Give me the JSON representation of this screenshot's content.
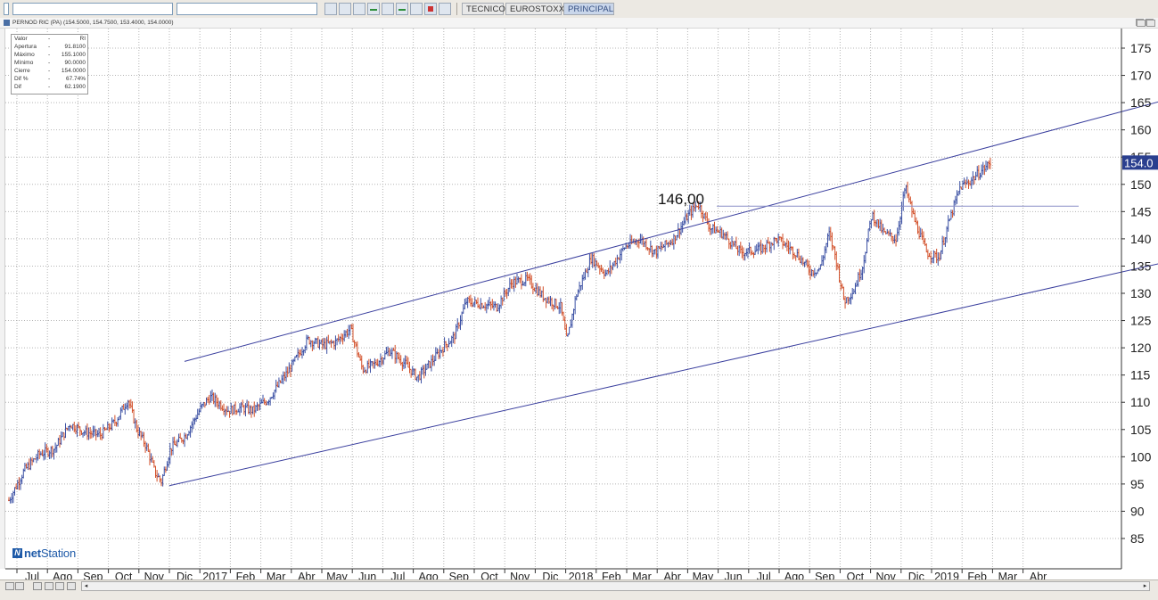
{
  "toolbar": {
    "tabs": [
      {
        "label": "TECNICO",
        "active": false
      },
      {
        "label": "EUROSTOXX",
        "active": false
      },
      {
        "label": "PRINCIPAL",
        "active": true
      }
    ]
  },
  "chart_window": {
    "title": "PERNOD RIC",
    "title_detail": "(PA) (154.5000, 154.7500, 153.4000, 154.0000)"
  },
  "info_panel": {
    "header": {
      "label": "Valor",
      "value": "RI"
    },
    "rows": [
      {
        "label": "Apertura",
        "value": "91.8100"
      },
      {
        "label": "Máximo",
        "value": "155.1000"
      },
      {
        "label": "Mínimo",
        "value": "90.0000"
      },
      {
        "label": "Cierre",
        "value": "154.0000"
      },
      {
        "label": "Dif %",
        "value": "67.74%"
      },
      {
        "label": "Dif",
        "value": "62.1900"
      }
    ]
  },
  "logo": {
    "prefix": "net",
    "suffix": "Station"
  },
  "chart_data": {
    "type": "candlestick",
    "title": "",
    "y_range": [
      82,
      178
    ],
    "y_ticks": [
      "85",
      "90",
      "95",
      "100",
      "105",
      "110",
      "115",
      "120",
      "125",
      "130",
      "135",
      "140",
      "145",
      "150",
      "155",
      "160",
      "165",
      "170",
      "175"
    ],
    "x_labels": [
      "Jul",
      "Ago",
      "Sep",
      "Oct",
      "Nov",
      "Dic",
      "2017",
      "Feb",
      "Mar",
      "Abr",
      "May",
      "Jun",
      "Jul",
      "Ago",
      "Sep",
      "Oct",
      "Nov",
      "Dic",
      "2018",
      "Feb",
      "Mar",
      "Abr",
      "May",
      "Jun",
      "Jul",
      "Ago",
      "Sep",
      "Oct",
      "Nov",
      "Dic",
      "2019",
      "Feb",
      "Mar",
      "Abr"
    ],
    "grid": true,
    "last_price_label": "154.0",
    "last_price": 154.0,
    "annotation": {
      "text": "146,00",
      "value": 146.0
    },
    "channel": {
      "upper": [
        {
          "month": 5,
          "value": 117.5
        },
        {
          "month": 40.2,
          "value": 170.0
        }
      ],
      "lower": [
        {
          "month": 4.5,
          "value": 94.7
        },
        {
          "month": 37.8,
          "value": 136.5
        }
      ]
    },
    "series_close_monthly": [
      {
        "month": 0.0,
        "value": 92.0
      },
      {
        "month": 0.5,
        "value": 97.5
      },
      {
        "month": 1.0,
        "value": 100.5
      },
      {
        "month": 1.5,
        "value": 101.5
      },
      {
        "month": 2.0,
        "value": 106.0
      },
      {
        "month": 2.5,
        "value": 104.5
      },
      {
        "month": 3.0,
        "value": 104.0
      },
      {
        "month": 3.5,
        "value": 106.5
      },
      {
        "month": 3.9,
        "value": 110.5
      },
      {
        "month": 4.2,
        "value": 105.0
      },
      {
        "month": 4.5,
        "value": 102.0
      },
      {
        "month": 4.8,
        "value": 97.0
      },
      {
        "month": 5.0,
        "value": 95.5
      },
      {
        "month": 5.3,
        "value": 101.5
      },
      {
        "month": 5.8,
        "value": 104.0
      },
      {
        "month": 6.3,
        "value": 109.0
      },
      {
        "month": 6.6,
        "value": 111.0
      },
      {
        "month": 7.2,
        "value": 108.5
      },
      {
        "month": 7.6,
        "value": 109.0
      },
      {
        "month": 8.0,
        "value": 108.5
      },
      {
        "month": 8.5,
        "value": 110.5
      },
      {
        "month": 9.2,
        "value": 116.0
      },
      {
        "month": 9.8,
        "value": 121.5
      },
      {
        "month": 10.3,
        "value": 120.5
      },
      {
        "month": 10.7,
        "value": 121.0
      },
      {
        "month": 11.2,
        "value": 123.5
      },
      {
        "month": 11.6,
        "value": 116.0
      },
      {
        "month": 12.0,
        "value": 117.0
      },
      {
        "month": 12.5,
        "value": 119.5
      },
      {
        "month": 13.0,
        "value": 117.0
      },
      {
        "month": 13.4,
        "value": 114.5
      },
      {
        "month": 13.8,
        "value": 117.0
      },
      {
        "month": 14.3,
        "value": 120.5
      },
      {
        "month": 14.6,
        "value": 122.0
      },
      {
        "month": 15.0,
        "value": 128.5
      },
      {
        "month": 15.5,
        "value": 128.0
      },
      {
        "month": 16.0,
        "value": 127.5
      },
      {
        "month": 16.5,
        "value": 132.0
      },
      {
        "month": 17.0,
        "value": 132.5
      },
      {
        "month": 17.5,
        "value": 129.5
      },
      {
        "month": 18.1,
        "value": 127.5
      },
      {
        "month": 18.3,
        "value": 121.0
      },
      {
        "month": 18.6,
        "value": 129.5
      },
      {
        "month": 19.1,
        "value": 136.5
      },
      {
        "month": 19.6,
        "value": 133.5
      },
      {
        "month": 20.2,
        "value": 138.5
      },
      {
        "month": 20.7,
        "value": 140.0
      },
      {
        "month": 21.2,
        "value": 137.5
      },
      {
        "month": 21.8,
        "value": 140.0
      },
      {
        "month": 22.3,
        "value": 144.5
      },
      {
        "month": 22.6,
        "value": 146.5
      },
      {
        "month": 23.0,
        "value": 142.0
      },
      {
        "month": 23.4,
        "value": 141.0
      },
      {
        "month": 24.0,
        "value": 137.5
      },
      {
        "month": 24.6,
        "value": 138.0
      },
      {
        "month": 25.2,
        "value": 140.0
      },
      {
        "month": 25.8,
        "value": 137.5
      },
      {
        "month": 26.3,
        "value": 134.0
      },
      {
        "month": 26.6,
        "value": 134.5
      },
      {
        "month": 26.9,
        "value": 141.0
      },
      {
        "month": 27.1,
        "value": 137.0
      },
      {
        "month": 27.4,
        "value": 128.5
      },
      {
        "month": 27.7,
        "value": 130.5
      },
      {
        "month": 28.0,
        "value": 135.0
      },
      {
        "month": 28.3,
        "value": 144.5
      },
      {
        "month": 28.7,
        "value": 141.0
      },
      {
        "month": 29.1,
        "value": 140.0
      },
      {
        "month": 29.4,
        "value": 149.5
      },
      {
        "month": 29.7,
        "value": 143.5
      },
      {
        "month": 30.1,
        "value": 137.5
      },
      {
        "month": 30.5,
        "value": 136.5
      },
      {
        "month": 30.8,
        "value": 142.5
      },
      {
        "month": 31.2,
        "value": 149.5
      },
      {
        "month": 31.5,
        "value": 150.5
      },
      {
        "month": 31.9,
        "value": 152.5
      },
      {
        "month": 32.2,
        "value": 154.0
      }
    ]
  }
}
